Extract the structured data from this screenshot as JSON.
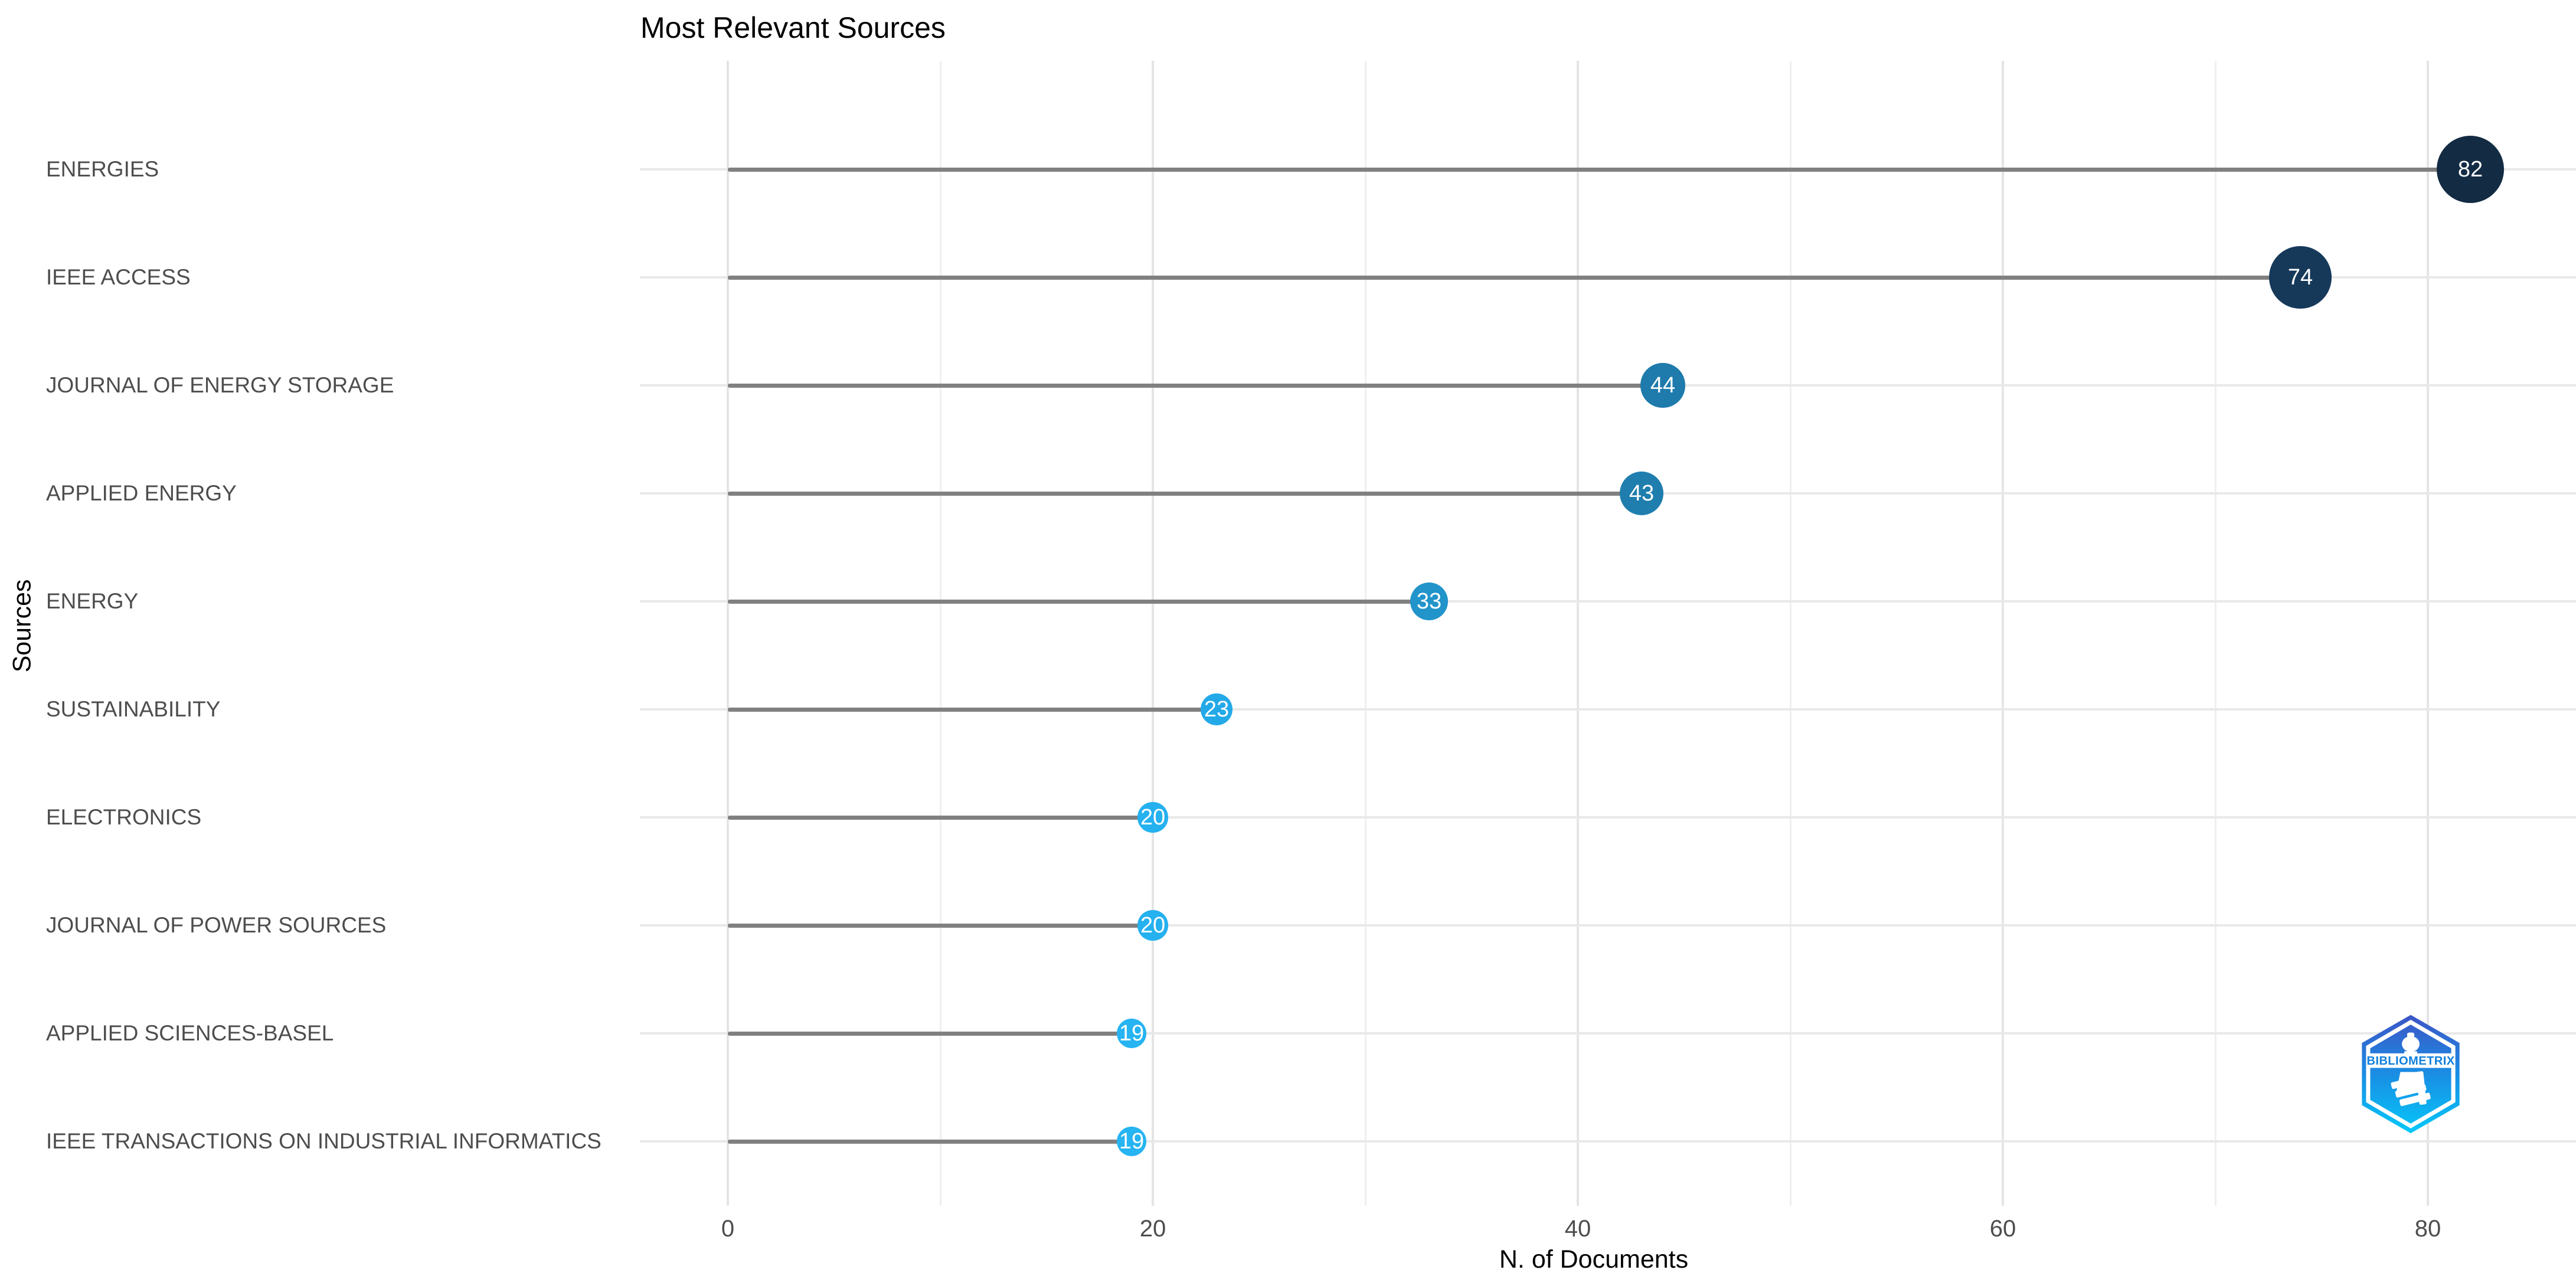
{
  "chart_data": {
    "type": "scatter",
    "variant": "lollipop-dot-plot",
    "title": "Most Relevant Sources",
    "xlabel": "N. of Documents",
    "ylabel": "Sources",
    "categories": [
      "ENERGIES",
      "IEEE ACCESS",
      "JOURNAL OF ENERGY STORAGE",
      "APPLIED ENERGY",
      "ENERGY",
      "SUSTAINABILITY",
      "ELECTRONICS",
      "JOURNAL OF POWER SOURCES",
      "APPLIED SCIENCES-BASEL",
      "IEEE TRANSACTIONS ON INDUSTRIAL INFORMATICS"
    ],
    "values": [
      82,
      74,
      44,
      43,
      33,
      23,
      20,
      20,
      19,
      19
    ],
    "point_colors": [
      "#132B43",
      "#16395A",
      "#1E7BAC",
      "#1F7EAE",
      "#2194CA",
      "#23A9E8",
      "#25B1EF",
      "#25B1EF",
      "#26B4F2",
      "#26B4F2"
    ],
    "xlim": [
      0,
      82
    ],
    "x_ticks": [
      0,
      20,
      40,
      60,
      80
    ],
    "x_minor_ticks": [
      10,
      30,
      50,
      70
    ],
    "grid": "on",
    "legend": "none",
    "stem_color": "#808080",
    "gridline_color": "#e9e9e9",
    "label_color": "#4d4d4d"
  },
  "watermark": {
    "label": "BIBLIOMETRIX"
  }
}
